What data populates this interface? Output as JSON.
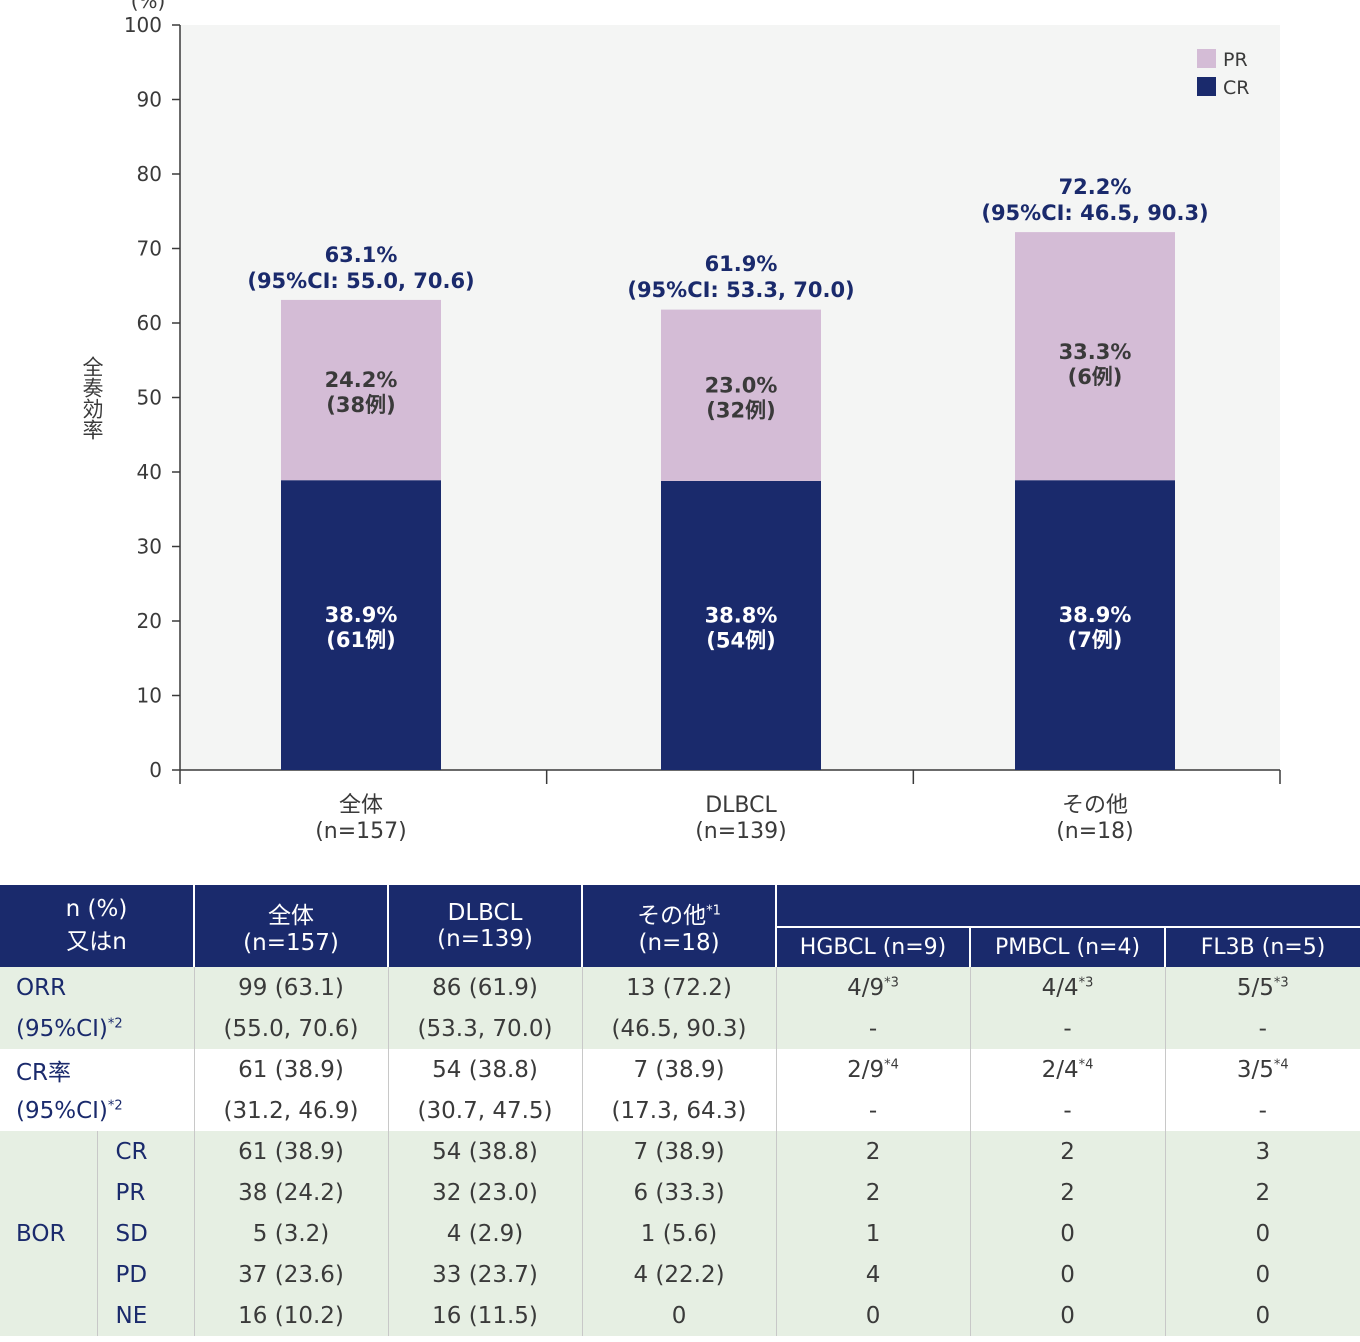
{
  "chart_data": {
    "type": "bar",
    "stacked": true,
    "ylabel": "全奏効率",
    "y_unit": "(%)",
    "ylim": [
      0,
      100
    ],
    "yticks": [
      0,
      10,
      20,
      30,
      40,
      50,
      60,
      70,
      80,
      90,
      100
    ],
    "grid": false,
    "legend_position": "top-right",
    "categories": [
      {
        "name": "全体",
        "n": "(n=157)"
      },
      {
        "name": "DLBCL",
        "n": "(n=139)"
      },
      {
        "name": "その他",
        "n": "(n=18)"
      }
    ],
    "series": [
      {
        "name": "CR",
        "color": "#1a2a6c",
        "values": [
          38.9,
          38.8,
          38.9
        ],
        "labels": [
          "38.9%",
          "38.8%",
          "38.9%"
        ],
        "counts": [
          "(61例)",
          "(54例)",
          "(7例)"
        ]
      },
      {
        "name": "PR",
        "color": "#d4bcd6",
        "values": [
          24.2,
          23.0,
          33.3
        ],
        "labels": [
          "24.2%",
          "23.0%",
          "33.3%"
        ],
        "counts": [
          "(38例)",
          "(32例)",
          "(6例)"
        ]
      }
    ],
    "totals": [
      {
        "value": 63.1,
        "pct": "63.1%",
        "ci": "(95%CI: 55.0, 70.6)"
      },
      {
        "value": 61.9,
        "pct": "61.9%",
        "ci": "(95%CI: 53.3, 70.0)"
      },
      {
        "value": 72.2,
        "pct": "72.2%",
        "ci": "(95%CI: 46.5, 90.3)"
      }
    ]
  },
  "table": {
    "header": {
      "col0_line1": "n (%)",
      "col0_line2": "又はn",
      "col1_line1": "全体",
      "col1_line2": "(n=157)",
      "col2_line1": "DLBCL",
      "col2_line2": "(n=139)",
      "col3_line1": "その他",
      "col3_sup": "*1",
      "col3_line2": "(n=18)",
      "sub1": "HGBCL (n=9)",
      "sub2": "PMBCL (n=4)",
      "sub3": "FL3B (n=5)"
    },
    "orr": {
      "label": "ORR",
      "ci_label": "(95%CI)",
      "ci_sup": "*2",
      "values": [
        "99 (63.1)",
        "86 (61.9)",
        "13 (72.2)",
        "4/9",
        "4/4",
        "5/5"
      ],
      "sups": [
        "",
        "",
        "",
        "*3",
        "*3",
        "*3"
      ],
      "cis": [
        "(55.0, 70.6)",
        "(53.3, 70.0)",
        "(46.5, 90.3)",
        "-",
        "-",
        "-"
      ]
    },
    "cr": {
      "label": "CR率",
      "ci_label": "(95%CI)",
      "ci_sup": "*2",
      "values": [
        "61 (38.9)",
        "54 (38.8)",
        "7 (38.9)",
        "2/9",
        "2/4",
        "3/5"
      ],
      "sups": [
        "",
        "",
        "",
        "*4",
        "*4",
        "*4"
      ],
      "cis": [
        "(31.2, 46.9)",
        "(30.7, 47.5)",
        "(17.3, 64.3)",
        "-",
        "-",
        "-"
      ]
    },
    "bor": {
      "label": "BOR",
      "rows": [
        {
          "name": "CR",
          "cells": [
            "61 (38.9)",
            "54 (38.8)",
            "7 (38.9)",
            "2",
            "2",
            "3"
          ]
        },
        {
          "name": "PR",
          "cells": [
            "38 (24.2)",
            "32 (23.0)",
            "6 (33.3)",
            "2",
            "2",
            "2"
          ]
        },
        {
          "name": "SD",
          "cells": [
            "5 (3.2)",
            "4 (2.9)",
            "1 (5.6)",
            "1",
            "0",
            "0"
          ]
        },
        {
          "name": "PD",
          "cells": [
            "37 (23.6)",
            "33 (23.7)",
            "4 (22.2)",
            "4",
            "0",
            "0"
          ]
        },
        {
          "name": "NE",
          "cells": [
            "16 (10.2)",
            "16 (11.5)",
            "0",
            "0",
            "0",
            "0"
          ]
        }
      ]
    }
  }
}
